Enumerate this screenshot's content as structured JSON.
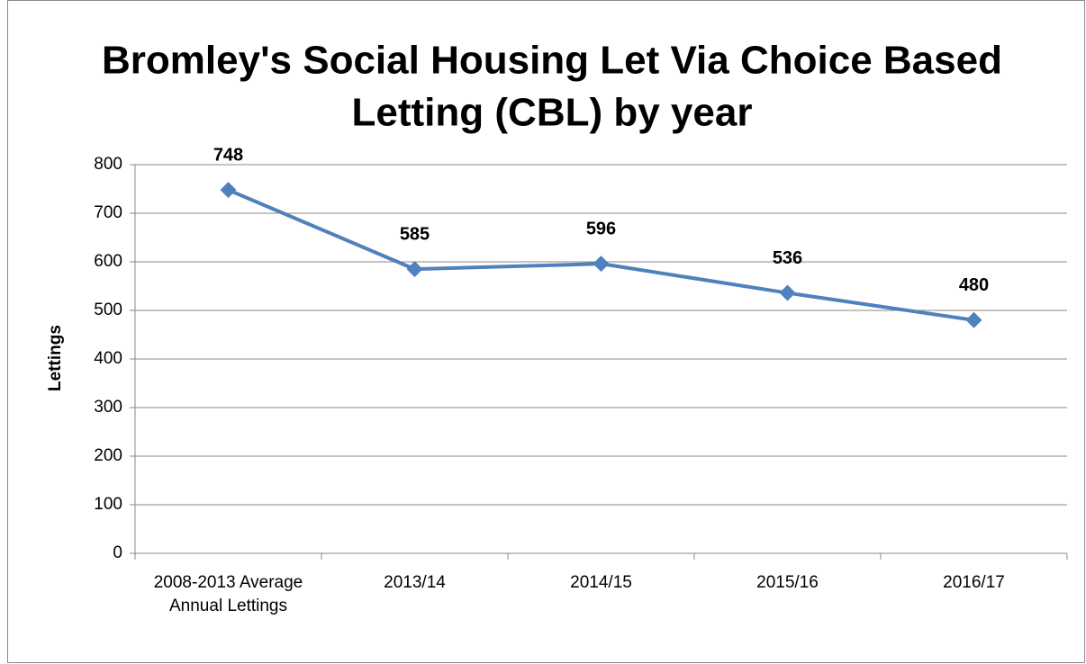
{
  "chart_data": {
    "type": "line",
    "title": [
      "Bromley's Social Housing Let Via Choice Based",
      "Letting  (CBL) by year"
    ],
    "y_label": "Lettings",
    "categories": [
      "2008-2013 Average Annual Lettings",
      "2013/14",
      "2014/15",
      "2015/16",
      "2016/17"
    ],
    "series": [
      {
        "name": "Lettings",
        "color": "#4f81bd",
        "values": [
          748,
          585,
          596,
          536,
          480
        ]
      }
    ],
    "ylim": [
      0,
      800
    ],
    "yticks": [
      0,
      100,
      200,
      300,
      400,
      500,
      600,
      700,
      800
    ],
    "grid": true
  }
}
